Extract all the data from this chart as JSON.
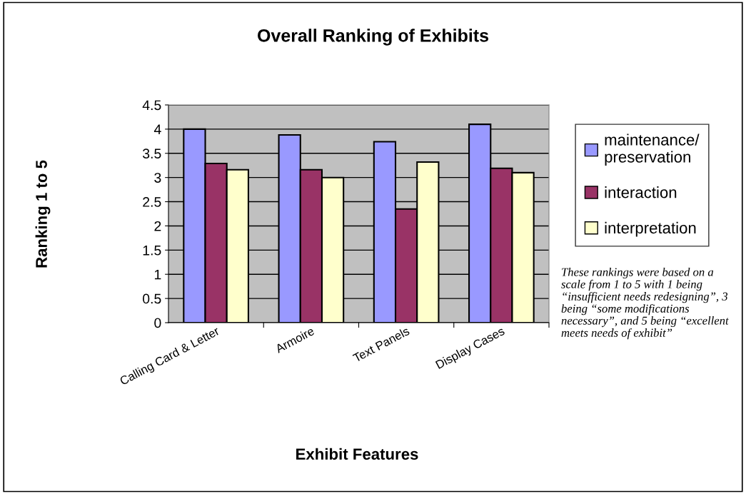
{
  "chart_data": {
    "type": "bar",
    "title": "Overall Ranking of Exhibits",
    "xlabel": "Exhibit Features",
    "ylabel": "Ranking 1 to 5",
    "categories": [
      "Calling Card & Letter",
      "Armoire",
      "Text Panels",
      "Display Cases"
    ],
    "series": [
      {
        "name": "maintenance/\npreservation",
        "color": "#9999ff",
        "values": [
          4.0,
          3.88,
          3.74,
          4.1
        ]
      },
      {
        "name": "interaction",
        "color": "#993366",
        "values": [
          3.29,
          3.16,
          2.35,
          3.19
        ]
      },
      {
        "name": "interpretation",
        "color": "#ffffcc",
        "values": [
          3.16,
          3.0,
          3.32,
          3.1
        ]
      }
    ],
    "ylim": [
      0,
      4.5
    ],
    "yticks": [
      0,
      0.5,
      1,
      1.5,
      2,
      2.5,
      3,
      3.5,
      4,
      4.5
    ],
    "grid": "y",
    "legend": "right",
    "annotations": [
      "These rankings were based on a scale from 1 to 5 with 1 being “insufficient needs redesigning”, 3 being “some modifications necessary”, and 5 being “excellent meets needs of exhibit”"
    ]
  }
}
